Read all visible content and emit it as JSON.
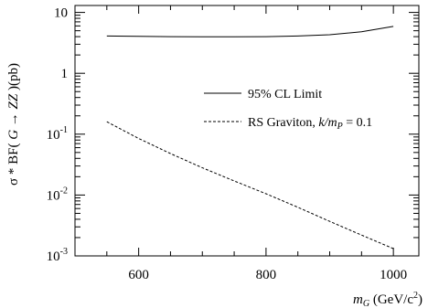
{
  "chart_data": {
    "type": "line",
    "xlabel_main": "m",
    "xlabel_sub": "G",
    "xlabel_unit": " (GeV/c",
    "xlabel_unit_sup": "2",
    "xlabel_close": ")",
    "ylabel_prefix": "σ * BF( ",
    "ylabel_G": "G",
    "ylabel_arrow": " → ",
    "ylabel_ZZ": "ZZ",
    "ylabel_suffix": " )(pb)",
    "xlim": [
      500,
      1040
    ],
    "ylim": [
      0.001,
      13
    ],
    "yscale": "log",
    "xticks": [
      600,
      800,
      1000
    ],
    "xtick_labels": [
      "600",
      "800",
      "1000"
    ],
    "yticks": [
      {
        "value": 10,
        "base": "10",
        "exp": ""
      },
      {
        "value": 1,
        "base": "1",
        "exp": ""
      },
      {
        "value": 0.1,
        "base": "10",
        "exp": "-1"
      },
      {
        "value": 0.01,
        "base": "10",
        "exp": "-2"
      },
      {
        "value": 0.001,
        "base": "10",
        "exp": "-3"
      }
    ],
    "legend_position": "center-right",
    "series": [
      {
        "name": "95% CL Limit",
        "style": "solid",
        "x": [
          550,
          600,
          650,
          700,
          750,
          800,
          850,
          900,
          950,
          1000
        ],
        "y": [
          4.1,
          4.05,
          4.0,
          3.98,
          3.98,
          4.0,
          4.1,
          4.3,
          4.8,
          5.9
        ]
      },
      {
        "name": "RS Graviton, ",
        "name_math": "k/m",
        "name_math_sub": "P",
        "name_suffix": " = 0.1",
        "style": "dashed",
        "x": [
          550,
          600,
          650,
          700,
          750,
          800,
          850,
          900,
          950,
          1000
        ],
        "y": [
          0.16,
          0.085,
          0.048,
          0.028,
          0.017,
          0.0105,
          0.0063,
          0.0037,
          0.0022,
          0.00132
        ]
      }
    ]
  }
}
